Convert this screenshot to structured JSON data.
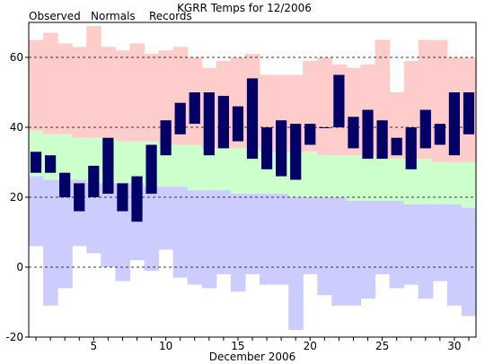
{
  "chart_data": {
    "type": "bar",
    "title": "KGRR Temps for 12/2006",
    "xlabel": "December 2006",
    "ylabel": "",
    "legend": [
      {
        "name": "Observed",
        "color": "#000066"
      },
      {
        "name": "Normals",
        "color": "#006600"
      },
      {
        "name": "Records",
        "color": "#cc88cc"
      }
    ],
    "colors": {
      "records_band": "#ffcccc",
      "normals_band": "#ccffcc",
      "low_band": "#ccccff",
      "observed": "#000066",
      "gridline": "#000000"
    },
    "ylim": [
      -20,
      70
    ],
    "yticks": [
      -20,
      0,
      20,
      40,
      60
    ],
    "xlim": [
      0.5,
      31.5
    ],
    "xticks": [
      5,
      10,
      15,
      20,
      25,
      30
    ],
    "days": [
      1,
      2,
      3,
      4,
      5,
      6,
      7,
      8,
      9,
      10,
      11,
      12,
      13,
      14,
      15,
      16,
      17,
      18,
      19,
      20,
      21,
      22,
      23,
      24,
      25,
      26,
      27,
      28,
      29,
      30,
      31
    ],
    "record_high": [
      65,
      67,
      64,
      63,
      69,
      63,
      62,
      64,
      61,
      62,
      63,
      60,
      57,
      59,
      60,
      61,
      55,
      55,
      55,
      59,
      60,
      58,
      57,
      58,
      65,
      50,
      59,
      65,
      65,
      60,
      60
    ],
    "record_low": [
      6,
      -11,
      -6,
      6,
      4,
      0,
      -4,
      2,
      -1,
      5,
      -3,
      -5,
      -6,
      -2,
      -7,
      -2,
      -5,
      -5,
      -18,
      -2,
      -8,
      -11,
      -11,
      -9,
      -2,
      -6,
      -5,
      -9,
      -4,
      -11,
      -14
    ],
    "normal_high": [
      39,
      38,
      38,
      37,
      37,
      37,
      36,
      36,
      36,
      35,
      35,
      35,
      34,
      34,
      34,
      34,
      33,
      33,
      33,
      33,
      32,
      32,
      32,
      32,
      31,
      31,
      31,
      31,
      30,
      30,
      30
    ],
    "normal_low": [
      26,
      25,
      25,
      25,
      24,
      24,
      24,
      24,
      23,
      23,
      23,
      22,
      22,
      22,
      21,
      21,
      21,
      21,
      20,
      20,
      20,
      20,
      19,
      19,
      19,
      19,
      18,
      18,
      18,
      18,
      17
    ],
    "observed_high": [
      33,
      32,
      27,
      24,
      29,
      37,
      24,
      26,
      35,
      42,
      47,
      50,
      50,
      49,
      46,
      54,
      40,
      42,
      41,
      41,
      40,
      55,
      43,
      45,
      42,
      37,
      40,
      45,
      41,
      50,
      50
    ],
    "observed_low": [
      27,
      27,
      20,
      16,
      20,
      21,
      16,
      13,
      21,
      32,
      38,
      41,
      32,
      34,
      36,
      31,
      28,
      26,
      25,
      35,
      41,
      40,
      34,
      31,
      31,
      32,
      28,
      34,
      35,
      32,
      38
    ]
  }
}
